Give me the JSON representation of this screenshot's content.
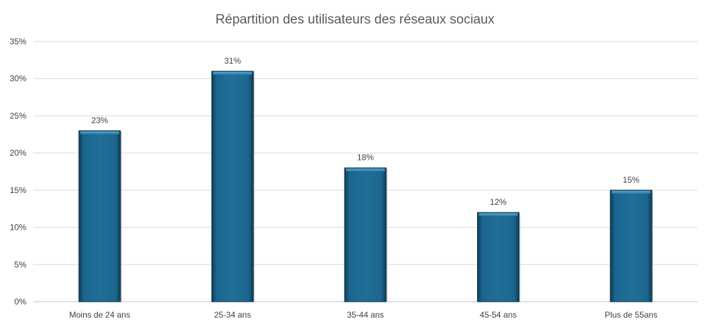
{
  "chart_data": {
    "type": "bar",
    "title": "Répartition des utilisateurs des réseaux sociaux",
    "categories": [
      "Moins de 24 ans",
      "25-34 ans",
      "35-44 ans",
      "45-54 ans",
      "Plus de 55ans"
    ],
    "values": [
      23,
      31,
      18,
      12,
      15
    ],
    "data_labels": [
      "23%",
      "31%",
      "18%",
      "12%",
      "15%"
    ],
    "y_ticks": [
      "0%",
      "5%",
      "10%",
      "15%",
      "20%",
      "25%",
      "30%",
      "35%"
    ],
    "y_tick_values": [
      0,
      5,
      10,
      15,
      20,
      25,
      30,
      35
    ],
    "xlabel": "",
    "ylabel": "",
    "ylim": [
      0,
      35
    ],
    "grid": true,
    "legend": "none",
    "bar_color": "#1f6a8f"
  }
}
